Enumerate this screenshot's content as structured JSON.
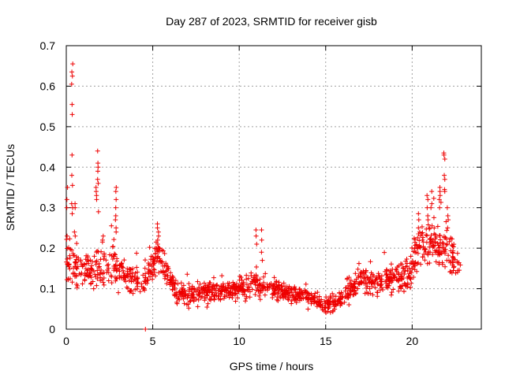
{
  "chart_data": {
    "type": "scatter",
    "title": "Day 287 of 2023, SRMTID for receiver gisb",
    "xlabel": "GPS time / hours",
    "ylabel": "SRMTID / TECUs",
    "xlim": [
      0,
      24
    ],
    "ylim": [
      0,
      0.7
    ],
    "xticks": [
      "0",
      "5",
      "10",
      "15",
      "20"
    ],
    "xtick_values": [
      0,
      5,
      10,
      15,
      20
    ],
    "yticks": [
      "0",
      "0.1",
      "0.2",
      "0.3",
      "0.4",
      "0.5",
      "0.6",
      "0.7"
    ],
    "ytick_values": [
      0,
      0.1,
      0.2,
      0.3,
      0.4,
      0.5,
      0.6,
      0.7
    ],
    "grid": true,
    "marker": "+",
    "color": "#ee0000",
    "series": [
      {
        "name": "SRMTID",
        "profile_x": [
          0,
          0.3,
          1.0,
          1.8,
          2.5,
          3.5,
          4.5,
          5.3,
          6.0,
          6.5,
          8.0,
          10.0,
          11.0,
          12.0,
          13.0,
          14.0,
          15.0,
          15.8,
          17.0,
          18.5,
          19.8,
          20.5,
          21.5,
          22.0,
          22.8
        ],
        "profile_median": [
          0.17,
          0.16,
          0.14,
          0.15,
          0.16,
          0.13,
          0.11,
          0.19,
          0.13,
          0.085,
          0.09,
          0.1,
          0.11,
          0.1,
          0.09,
          0.08,
          0.06,
          0.07,
          0.12,
          0.12,
          0.13,
          0.22,
          0.2,
          0.2,
          0.15
        ],
        "profile_spread": [
          0.05,
          0.06,
          0.04,
          0.04,
          0.05,
          0.035,
          0.03,
          0.04,
          0.035,
          0.025,
          0.025,
          0.025,
          0.03,
          0.025,
          0.022,
          0.02,
          0.018,
          0.02,
          0.03,
          0.03,
          0.035,
          0.05,
          0.05,
          0.06,
          0.03
        ],
        "spikes": [
          {
            "x": 0.35,
            "y": [
              0.655,
              0.635,
              0.625,
              0.605,
              0.555,
              0.53,
              0.43,
              0.38,
              0.355,
              0.31,
              0.3,
              0.285
            ]
          },
          {
            "x": 0.5,
            "y": [
              0.3,
              0.31,
              0.24,
              0.23
            ]
          },
          {
            "x": 1.75,
            "y": [
              0.35,
              0.34,
              0.33,
              0.32
            ]
          },
          {
            "x": 1.85,
            "y": [
              0.44,
              0.41,
              0.4,
              0.39,
              0.37,
              0.36,
              0.29
            ]
          },
          {
            "x": 2.1,
            "y": [
              0.23,
              0.22,
              0.215
            ]
          },
          {
            "x": 2.85,
            "y": [
              0.35,
              0.34,
              0.32,
              0.3,
              0.28,
              0.27,
              0.25,
              0.24
            ]
          },
          {
            "x": 5.3,
            "y": [
              0.26,
              0.25,
              0.24,
              0.23,
              0.22,
              0.21
            ]
          },
          {
            "x": 11.0,
            "y": [
              0.245,
              0.23,
              0.21
            ]
          },
          {
            "x": 11.3,
            "y": [
              0.245,
              0.22,
              0.19,
              0.17
            ]
          },
          {
            "x": 4.55,
            "y": [
              0.0
            ]
          },
          {
            "x": 0.05,
            "y": [
              0.35,
              0.32,
              0.3,
              0.23
            ]
          },
          {
            "x": 20.4,
            "y": [
              0.285,
              0.27,
              0.25,
              0.24
            ]
          },
          {
            "x": 20.9,
            "y": [
              0.32,
              0.33,
              0.3,
              0.28,
              0.27
            ]
          },
          {
            "x": 21.1,
            "y": [
              0.34,
              0.31,
              0.3
            ]
          },
          {
            "x": 21.6,
            "y": [
              0.35,
              0.34,
              0.33,
              0.32,
              0.3
            ]
          },
          {
            "x": 21.85,
            "y": [
              0.435,
              0.43,
              0.42,
              0.38,
              0.37,
              0.345,
              0.34
            ]
          },
          {
            "x": 22.05,
            "y": [
              0.3,
              0.28,
              0.27,
              0.25
            ]
          }
        ]
      }
    ]
  }
}
